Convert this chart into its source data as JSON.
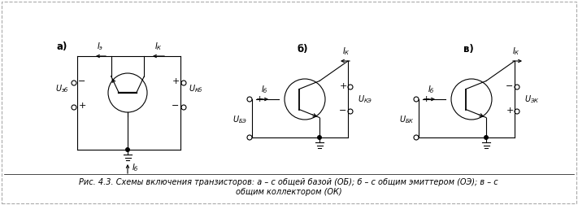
{
  "caption_line1": "Рис. 4.3. Схемы включения транзисторов: а – с общей базой (ОБ); б – с общим эмиттером (ОЭ); в – с",
  "caption_line2": "общим коллектором (ОК)",
  "label_a": "а)",
  "label_b": "б)",
  "label_v": "в)",
  "bg_color": "#ffffff",
  "text_color": "#000000",
  "font_size_caption": 7.0,
  "font_size_labels": 8.5,
  "font_size_small": 7.0
}
